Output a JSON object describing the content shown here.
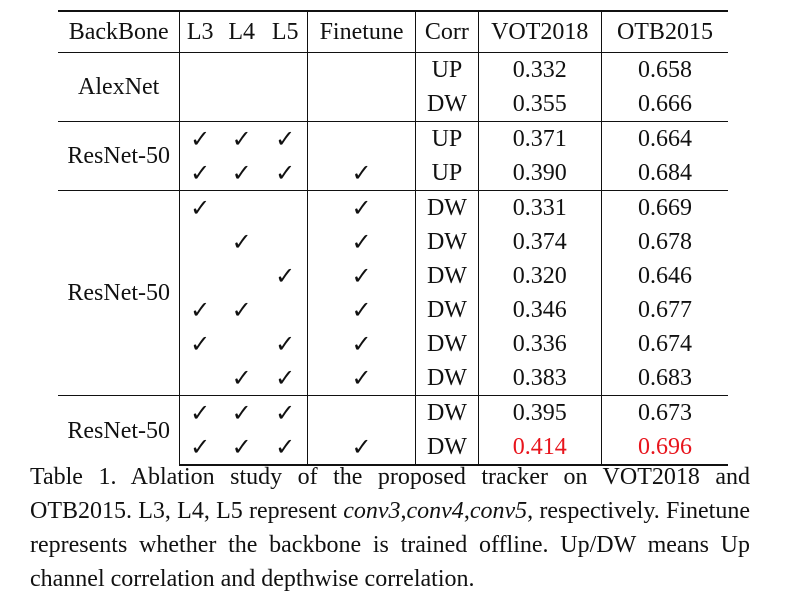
{
  "table": {
    "headers": [
      "BackBone",
      "L3",
      "L4",
      "L5",
      "Finetune",
      "Corr",
      "VOT2018",
      "OTB2015"
    ],
    "groups": [
      {
        "backbone": "AlexNet",
        "rows": [
          {
            "l3": "",
            "l4": "",
            "l5": "",
            "ft": "",
            "corr": "UP",
            "vot": "0.332",
            "otb": "0.658"
          },
          {
            "l3": "",
            "l4": "",
            "l5": "",
            "ft": "",
            "corr": "DW",
            "vot": "0.355",
            "otb": "0.666"
          }
        ]
      },
      {
        "backbone": "ResNet-50",
        "rows": [
          {
            "l3": "✓",
            "l4": "✓",
            "l5": "✓",
            "ft": "",
            "corr": "UP",
            "vot": "0.371",
            "otb": "0.664"
          },
          {
            "l3": "✓",
            "l4": "✓",
            "l5": "✓",
            "ft": "✓",
            "corr": "UP",
            "vot": "0.390",
            "otb": "0.684"
          }
        ]
      },
      {
        "backbone": "ResNet-50",
        "rows": [
          {
            "l3": "✓",
            "l4": "",
            "l5": "",
            "ft": "✓",
            "corr": "DW",
            "vot": "0.331",
            "otb": "0.669"
          },
          {
            "l3": "",
            "l4": "✓",
            "l5": "",
            "ft": "✓",
            "corr": "DW",
            "vot": "0.374",
            "otb": "0.678"
          },
          {
            "l3": "",
            "l4": "",
            "l5": "✓",
            "ft": "✓",
            "corr": "DW",
            "vot": "0.320",
            "otb": "0.646"
          },
          {
            "l3": "✓",
            "l4": "✓",
            "l5": "",
            "ft": "✓",
            "corr": "DW",
            "vot": "0.346",
            "otb": "0.677"
          },
          {
            "l3": "✓",
            "l4": "",
            "l5": "✓",
            "ft": "✓",
            "corr": "DW",
            "vot": "0.336",
            "otb": "0.674"
          },
          {
            "l3": "",
            "l4": "✓",
            "l5": "✓",
            "ft": "✓",
            "corr": "DW",
            "vot": "0.383",
            "otb": "0.683"
          }
        ]
      },
      {
        "backbone": "ResNet-50",
        "rows": [
          {
            "l3": "✓",
            "l4": "✓",
            "l5": "✓",
            "ft": "",
            "corr": "DW",
            "vot": "0.395",
            "otb": "0.673"
          },
          {
            "l3": "✓",
            "l4": "✓",
            "l5": "✓",
            "ft": "✓",
            "corr": "DW",
            "vot": "0.414",
            "otb": "0.696",
            "best": true
          }
        ]
      }
    ],
    "highlight_color": "#e8141c"
  },
  "caption": {
    "prefix": "Table 1. Ablation study of the proposed tracker on VOT2018 and OTB2015. L3, L4, L5 represent ",
    "conv3": "conv3",
    "sep1": ",",
    "conv4": "conv4",
    "sep2": ",",
    "conv5": "conv5",
    "suffix": ", respectively. Finetune represents whether the backbone is trained offline. Up/DW means Up channel correlation and depthwise correlation."
  }
}
